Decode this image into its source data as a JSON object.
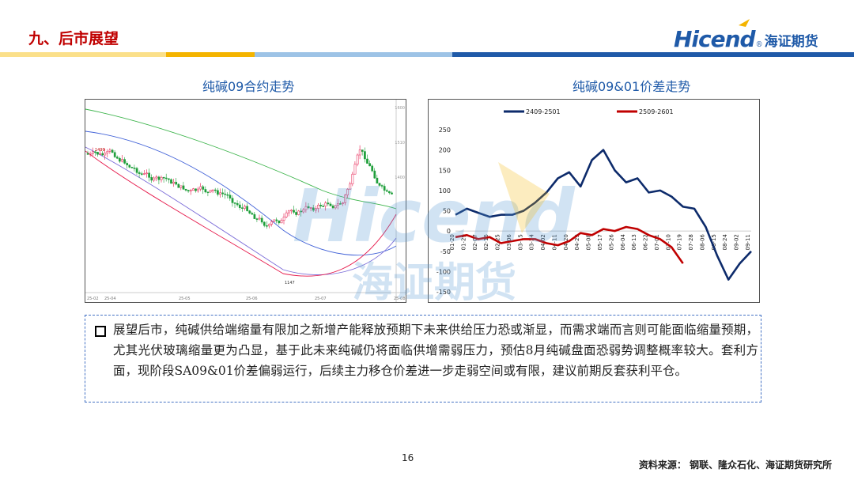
{
  "header": {
    "title": "九、后市展望",
    "brand_latin": "Hicend",
    "brand_reg": "®",
    "brand_cn": "海证期货"
  },
  "left_chart": {
    "title": "纯碱09合约走势",
    "price_labels": [
      "1499",
      "1147"
    ],
    "axis_labels": [
      "1600",
      "1510",
      "1400"
    ],
    "x_labels": [
      "25-02",
      "25-04",
      "25-05",
      "25-06",
      "25-07",
      "25-08"
    ]
  },
  "watermark": {
    "latin": "Hicend",
    "cn": "海证期货"
  },
  "chart_data": {
    "type": "line",
    "title": "纯碱09&01价差走势",
    "ylim": [
      -150,
      250
    ],
    "yticks": [
      250,
      200,
      150,
      100,
      50,
      0,
      -50,
      -100,
      -150
    ],
    "x": [
      "01-20",
      "01-29",
      "02-07",
      "02-16",
      "02-25",
      "03-06",
      "03-15",
      "03-24",
      "04-02",
      "04-11",
      "04-20",
      "04-29",
      "05-08",
      "05-17",
      "05-26",
      "06-04",
      "06-13",
      "06-22",
      "07-01",
      "07-10",
      "07-19",
      "07-28",
      "08-06",
      "08-15",
      "08-24",
      "09-02",
      "09-11"
    ],
    "series": [
      {
        "name": "2409-2501",
        "color": "#0d2b6b",
        "values": [
          40,
          55,
          45,
          35,
          40,
          40,
          50,
          70,
          95,
          130,
          145,
          110,
          175,
          200,
          150,
          120,
          130,
          95,
          100,
          85,
          60,
          55,
          10,
          -60,
          -120,
          -80,
          -50
        ]
      },
      {
        "name": "2509-2601",
        "color": "#c00000",
        "values": [
          -15,
          -10,
          -20,
          -15,
          -30,
          -25,
          -20,
          -20,
          -30,
          -35,
          -25,
          -5,
          -10,
          5,
          0,
          10,
          5,
          -10,
          -20,
          -40,
          -80,
          null,
          null,
          null,
          null,
          null,
          null
        ]
      }
    ]
  },
  "body": {
    "text": "展望后市，纯碱供给端缩量有限加之新增产能释放预期下未来供给压力恐或渐显，而需求端而言则可能面临缩量预期，尤其光伏玻璃缩量更为凸显，基于此未来纯碱仍将面临供增需弱压力，预估8月纯碱盘面恐弱势调整概率较大。套利方面，现阶段SA09&01价差偏弱运行，后续主力移仓价差进一步走弱空间或有限，建议前期反套获利平仓。"
  },
  "footer": {
    "page": "16",
    "source": "资料来源： 钢联、隆众石化、海证期货研究所"
  },
  "colors": {
    "title_red": "#c00000",
    "brand_blue": "#1f5aa8",
    "stripe_yellow": "#f4b400",
    "stripe_blue": "#1f5aa8"
  }
}
